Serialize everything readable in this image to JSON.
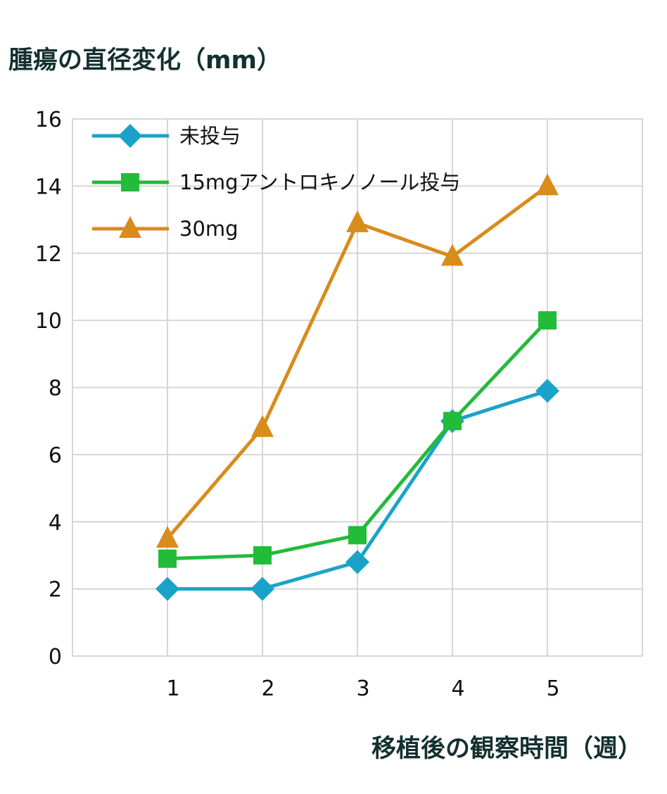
{
  "chart_data": {
    "type": "line",
    "title": "腫瘍の直径変化（mm）",
    "xlabel": "移植後の観察時間（週）",
    "ylabel": "",
    "x": [
      1,
      2,
      3,
      4,
      5
    ],
    "x_ticks": [
      "1",
      "2",
      "3",
      "4",
      "5"
    ],
    "xlim": [
      0,
      6
    ],
    "ylim": [
      0,
      16
    ],
    "y_ticks": [
      "0",
      "2",
      "4",
      "6",
      "8",
      "10",
      "12",
      "14",
      "16"
    ],
    "grid": true,
    "legend_position": "top-left",
    "series": [
      {
        "name": "未投与",
        "marker": "diamond",
        "color": "#1aa3c8",
        "values": [
          2.0,
          2.0,
          2.8,
          7.0,
          7.9
        ]
      },
      {
        "name": "15mgアントロキノノール投与",
        "marker": "square",
        "color": "#22bb3a",
        "values": [
          2.9,
          3.0,
          3.6,
          7.0,
          10.0
        ]
      },
      {
        "name": "30mg",
        "marker": "triangle",
        "color": "#d88c1c",
        "values": [
          3.5,
          6.8,
          12.9,
          11.9,
          14.0
        ]
      }
    ]
  }
}
